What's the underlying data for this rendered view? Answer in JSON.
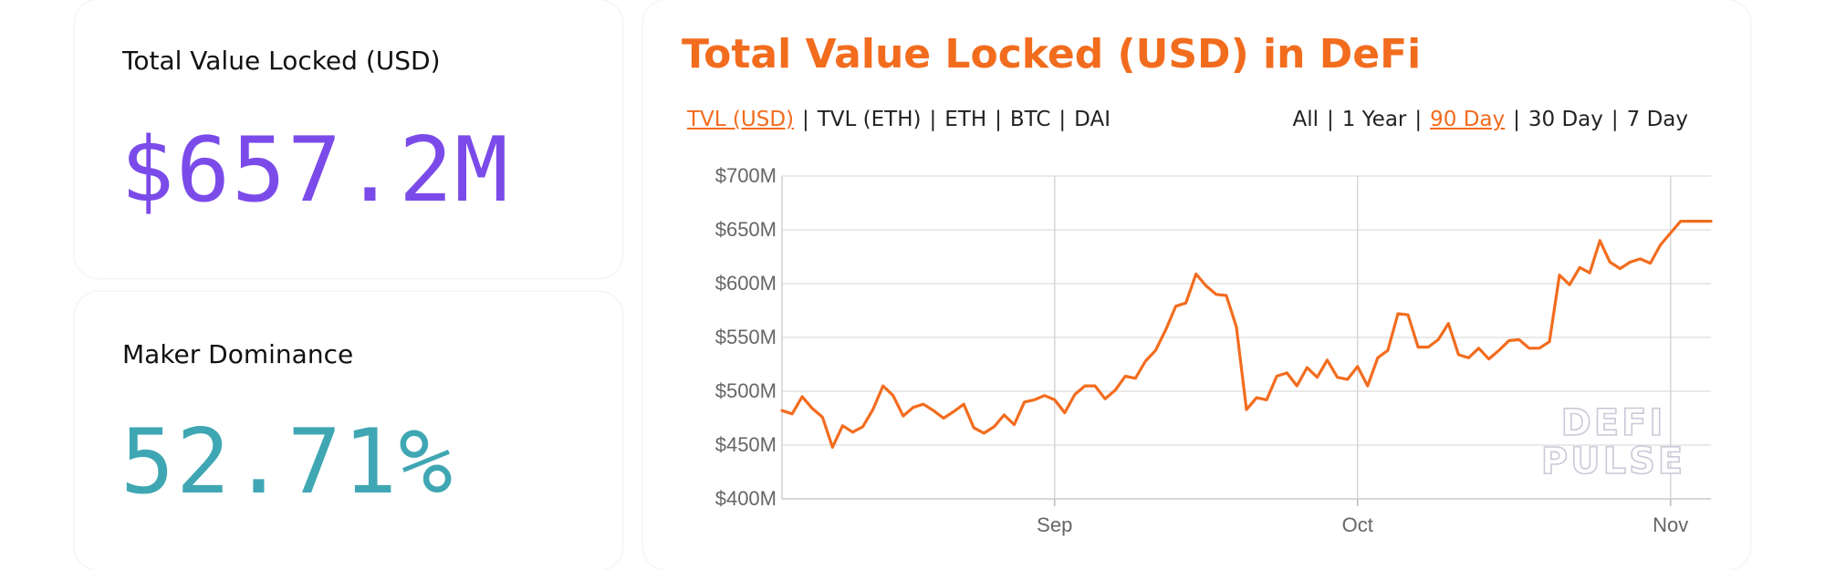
{
  "stats": {
    "tvl": {
      "label": "Total Value Locked (USD)",
      "value": "$657.2M",
      "color": "#7b4bea"
    },
    "dominance": {
      "label": "Maker Dominance",
      "value": "52.71%",
      "color": "#3fa7b3"
    }
  },
  "chart_panel": {
    "title": "Total Value Locked (USD) in DeFi",
    "metric_options": [
      "TVL (USD)",
      "TVL (ETH)",
      "ETH",
      "BTC",
      "DAI"
    ],
    "metric_active": "TVL (USD)",
    "range_options": [
      "All",
      "1 Year",
      "90 Day",
      "30 Day",
      "7 Day"
    ],
    "range_active": "90 Day",
    "watermark": [
      "DEFI",
      "PULSE"
    ],
    "accent_color": "#f26c1e"
  },
  "chart_data": {
    "type": "line",
    "title": "Total Value Locked (USD) in DeFi",
    "xlabel": "",
    "ylabel": "",
    "ylim": [
      400,
      700
    ],
    "y_unit": "M USD",
    "y_ticks": [
      400,
      450,
      500,
      550,
      600,
      650,
      700
    ],
    "y_tick_labels": [
      "$400M",
      "$450M",
      "$500M",
      "$550M",
      "$600M",
      "$650M",
      "$700M"
    ],
    "x_ticks": [
      {
        "label": "Sep",
        "day": 27
      },
      {
        "label": "Oct",
        "day": 57
      },
      {
        "label": "Nov",
        "day": 88
      }
    ],
    "grid": true,
    "legend": "none",
    "series": [
      {
        "color": "#f26c1e",
        "x": [
          0,
          1,
          2,
          3,
          4,
          5,
          6,
          7,
          8,
          9,
          10,
          11,
          12,
          13,
          14,
          15,
          16,
          17,
          18,
          19,
          20,
          21,
          22,
          23,
          24,
          25,
          26,
          27,
          28,
          29,
          30,
          31,
          32,
          33,
          34,
          35,
          36,
          37,
          38,
          39,
          40,
          41,
          42,
          43,
          44,
          45,
          46,
          47,
          48,
          49,
          50,
          51,
          52,
          53,
          54,
          55,
          56,
          57,
          58,
          59,
          60,
          61,
          62,
          63,
          64,
          65,
          66,
          67,
          68,
          69,
          70,
          71,
          72,
          73,
          74,
          75,
          76,
          77,
          78,
          79,
          80,
          81,
          82,
          83,
          84,
          85,
          86,
          87,
          88,
          89,
          90,
          91,
          92
        ],
        "values": [
          482,
          479,
          495,
          484,
          476,
          448,
          468,
          462,
          467,
          483,
          505,
          496,
          477,
          485,
          488,
          482,
          475,
          481,
          488,
          466,
          461,
          467,
          478,
          469,
          490,
          492,
          496,
          492,
          480,
          497,
          505,
          505,
          493,
          501,
          514,
          512,
          528,
          538,
          557,
          579,
          582,
          609,
          598,
          590,
          589,
          560,
          483,
          494,
          492,
          514,
          517,
          505,
          522,
          513,
          529,
          513,
          511,
          523,
          505,
          531,
          538,
          572,
          571,
          541,
          541,
          548,
          563,
          534,
          531,
          540,
          530,
          538,
          547,
          548,
          540,
          540,
          546,
          608,
          599,
          615,
          610,
          640,
          620,
          614,
          620,
          623,
          619,
          636,
          647,
          658,
          658,
          658,
          658
        ]
      }
    ]
  }
}
